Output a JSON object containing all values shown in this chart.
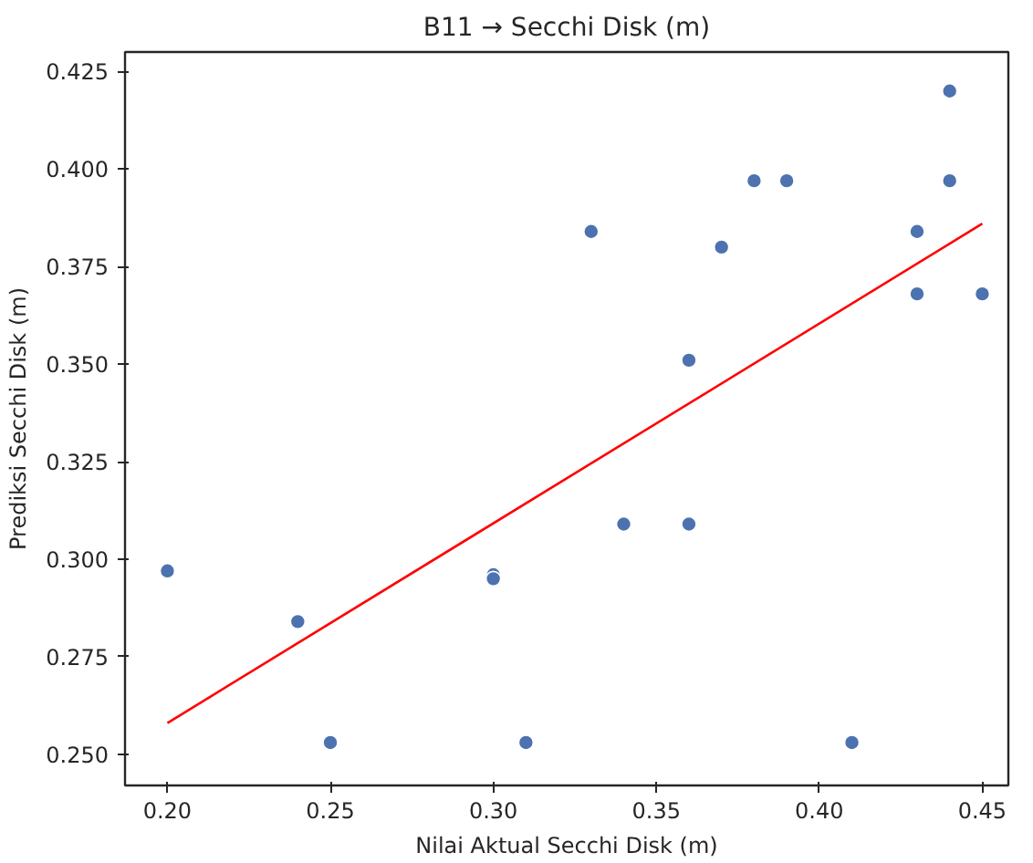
{
  "chart_data": {
    "type": "scatter",
    "title": "B11 → Secchi Disk (m)",
    "xlabel": "Nilai Aktual Secchi Disk (m)",
    "ylabel": "Prediksi Secchi Disk (m)",
    "grid": false,
    "xlim": [
      0.187,
      0.458
    ],
    "ylim": [
      0.242,
      0.43
    ],
    "xticks": [
      {
        "value": 0.2,
        "label": "0.20"
      },
      {
        "value": 0.25,
        "label": "0.25"
      },
      {
        "value": 0.3,
        "label": "0.30"
      },
      {
        "value": 0.35,
        "label": "0.35"
      },
      {
        "value": 0.4,
        "label": "0.40"
      },
      {
        "value": 0.45,
        "label": "0.45"
      }
    ],
    "yticks": [
      {
        "value": 0.25,
        "label": "0.250"
      },
      {
        "value": 0.275,
        "label": "0.275"
      },
      {
        "value": 0.3,
        "label": "0.300"
      },
      {
        "value": 0.325,
        "label": "0.325"
      },
      {
        "value": 0.35,
        "label": "0.350"
      },
      {
        "value": 0.375,
        "label": "0.375"
      },
      {
        "value": 0.4,
        "label": "0.400"
      },
      {
        "value": 0.425,
        "label": "0.425"
      }
    ],
    "series": [
      {
        "marker": "circle",
        "color": "#4c72b0",
        "x": [
          0.2,
          0.24,
          0.25,
          0.3,
          0.3,
          0.31,
          0.33,
          0.34,
          0.36,
          0.36,
          0.37,
          0.38,
          0.39,
          0.41,
          0.43,
          0.43,
          0.44,
          0.44,
          0.45
        ],
        "values": [
          0.297,
          0.284,
          0.253,
          0.296,
          0.295,
          0.253,
          0.384,
          0.309,
          0.351,
          0.309,
          0.38,
          0.397,
          0.397,
          0.253,
          0.384,
          0.368,
          0.42,
          0.397,
          0.368
        ]
      },
      {
        "type": "line",
        "color": "#ff0000",
        "x": [
          0.2,
          0.45
        ],
        "values": [
          0.258,
          0.386
        ]
      }
    ]
  }
}
